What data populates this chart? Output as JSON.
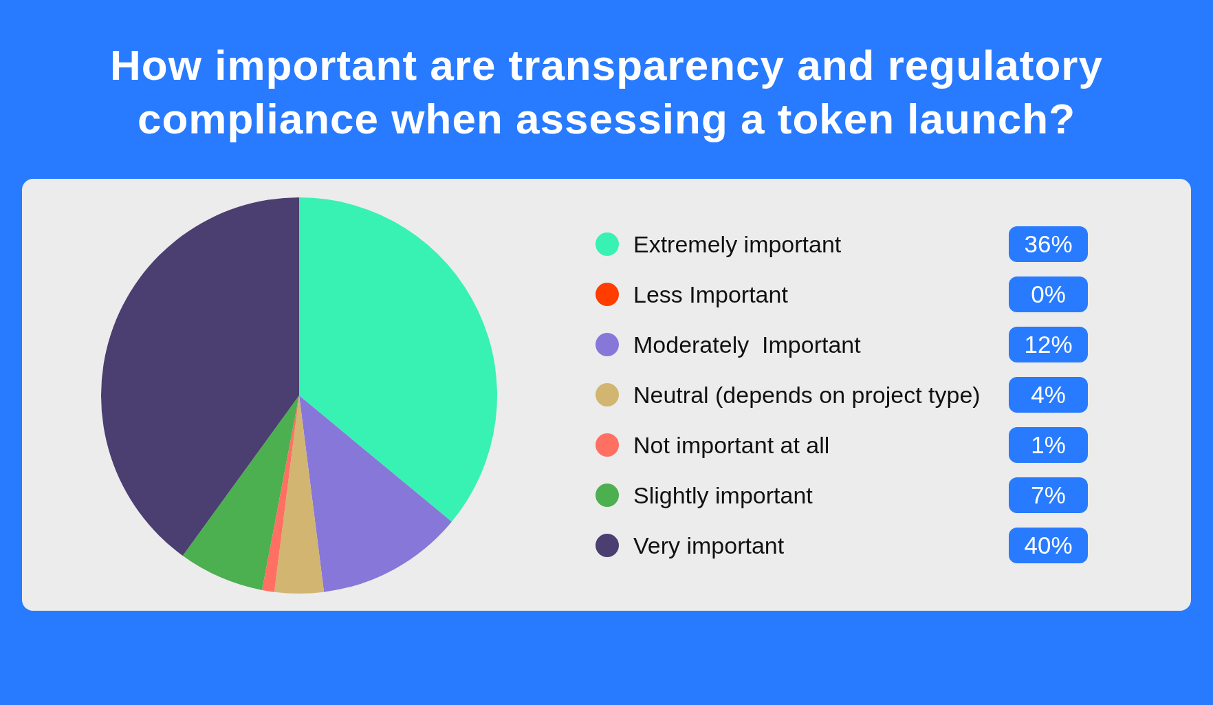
{
  "chart_data": {
    "type": "pie",
    "title": "How important are transparency and regulatory compliance when assessing a token launch?",
    "categories": [
      "Extremely important",
      "Less Important",
      "Moderately  Important",
      "Neutral (depends on project type)",
      "Not important at all",
      "Slightly important",
      "Very important"
    ],
    "values": [
      36,
      0,
      12,
      4,
      1,
      7,
      40
    ],
    "colors": [
      "#37f2b3",
      "#ff3d00",
      "#8677d9",
      "#d2b570",
      "#ff7062",
      "#4caf50",
      "#4b3e70"
    ],
    "value_labels": [
      "36%",
      "0%",
      "12%",
      "4%",
      "1%",
      "7%",
      "40%"
    ],
    "legend": "right"
  }
}
